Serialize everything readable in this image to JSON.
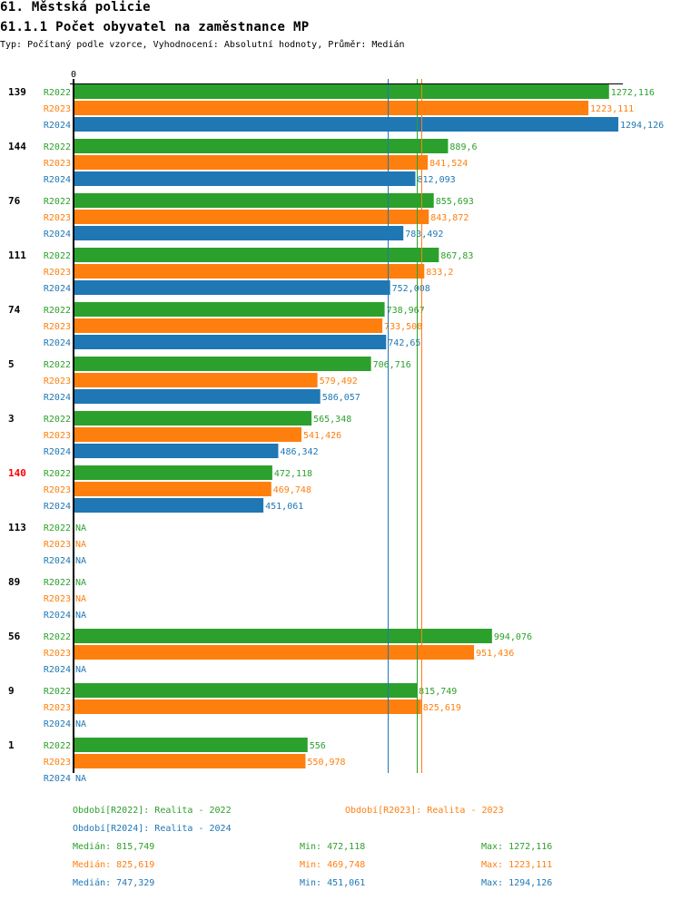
{
  "header": {
    "section_title": "61. Městská policie",
    "chart_title": "61.1.1 Počet obyvatel na zaměstnance MP",
    "subtitle": "Typ: Počítaný podle vzorce, Vyhodnocení: Absolutní hodnoty, Průměr: Medián"
  },
  "colors": {
    "R2022": "#2ca02c",
    "R2023": "#ff7f0e",
    "R2024": "#1f77b4",
    "highlight_group": "#ff0000",
    "axis": "#000000"
  },
  "chart_data": {
    "type": "bar",
    "orientation": "horizontal",
    "title": "61.1.1 Počet obyvatel na zaměstnance MP",
    "x_axis_tick_labels": [
      "0"
    ],
    "xlim": [
      0,
      1300
    ],
    "series_names": [
      "R2022",
      "R2023",
      "R2024"
    ],
    "na_label": "NA",
    "groups": [
      {
        "label": "139",
        "highlight": false,
        "values": {
          "R2022": 1272.116,
          "R2023": 1223.111,
          "R2024": 1294.126
        },
        "labels": {
          "R2022": "1272,116",
          "R2023": "1223,111",
          "R2024": "1294,126"
        }
      },
      {
        "label": "144",
        "highlight": false,
        "values": {
          "R2022": 889.6,
          "R2023": 841.524,
          "R2024": 812.093
        },
        "labels": {
          "R2022": "889,6",
          "R2023": "841,524",
          "R2024": "812,093"
        }
      },
      {
        "label": "76",
        "highlight": false,
        "values": {
          "R2022": 855.693,
          "R2023": 843.872,
          "R2024": 783.492
        },
        "labels": {
          "R2022": "855,693",
          "R2023": "843,872",
          "R2024": "783,492"
        }
      },
      {
        "label": "111",
        "highlight": false,
        "values": {
          "R2022": 867.83,
          "R2023": 833.2,
          "R2024": 752.008
        },
        "labels": {
          "R2022": "867,83",
          "R2023": "833,2",
          "R2024": "752,008"
        }
      },
      {
        "label": "74",
        "highlight": false,
        "values": {
          "R2022": 738.967,
          "R2023": 733.508,
          "R2024": 742.65
        },
        "labels": {
          "R2022": "738,967",
          "R2023": "733,508",
          "R2024": "742,65"
        }
      },
      {
        "label": "5",
        "highlight": false,
        "values": {
          "R2022": 706.716,
          "R2023": 579.492,
          "R2024": 586.057
        },
        "labels": {
          "R2022": "706,716",
          "R2023": "579,492",
          "R2024": "586,057"
        }
      },
      {
        "label": "3",
        "highlight": false,
        "values": {
          "R2022": 565.348,
          "R2023": 541.426,
          "R2024": 486.342
        },
        "labels": {
          "R2022": "565,348",
          "R2023": "541,426",
          "R2024": "486,342"
        }
      },
      {
        "label": "140",
        "highlight": true,
        "values": {
          "R2022": 472.118,
          "R2023": 469.748,
          "R2024": 451.061
        },
        "labels": {
          "R2022": "472,118",
          "R2023": "469,748",
          "R2024": "451,061"
        }
      },
      {
        "label": "113",
        "highlight": false,
        "values": {
          "R2022": null,
          "R2023": null,
          "R2024": null
        },
        "labels": {
          "R2022": "NA",
          "R2023": "NA",
          "R2024": "NA"
        }
      },
      {
        "label": "89",
        "highlight": false,
        "values": {
          "R2022": null,
          "R2023": null,
          "R2024": null
        },
        "labels": {
          "R2022": "NA",
          "R2023": "NA",
          "R2024": "NA"
        }
      },
      {
        "label": "56",
        "highlight": false,
        "values": {
          "R2022": 994.076,
          "R2023": 951.436,
          "R2024": null
        },
        "labels": {
          "R2022": "994,076",
          "R2023": "951,436",
          "R2024": "NA"
        }
      },
      {
        "label": "9",
        "highlight": false,
        "values": {
          "R2022": 815.749,
          "R2023": 825.619,
          "R2024": null
        },
        "labels": {
          "R2022": "815,749",
          "R2023": "825,619",
          "R2024": "NA"
        }
      },
      {
        "label": "1",
        "highlight": false,
        "values": {
          "R2022": 556,
          "R2023": 550.978,
          "R2024": null
        },
        "labels": {
          "R2022": "556",
          "R2023": "550,978",
          "R2024": "NA"
        }
      }
    ],
    "median_lines": {
      "R2022": 815.749,
      "R2023": 825.619,
      "R2024": 747.329
    },
    "legend": [
      {
        "series": "R2022",
        "text": "Období[R2022]: Realita - 2022"
      },
      {
        "series": "R2023",
        "text": "Období[R2023]: Realita - 2023"
      },
      {
        "series": "R2024",
        "text": "Období[R2024]: Realita - 2024"
      }
    ],
    "stats": [
      {
        "series": "R2022",
        "median": "Medián: 815,749",
        "min": "Min: 472,118",
        "max": "Max: 1272,116"
      },
      {
        "series": "R2023",
        "median": "Medián: 825,619",
        "min": "Min: 469,748",
        "max": "Max: 1223,111"
      },
      {
        "series": "R2024",
        "median": "Medián: 747,329",
        "min": "Min: 451,061",
        "max": "Max: 1294,126"
      }
    ]
  }
}
